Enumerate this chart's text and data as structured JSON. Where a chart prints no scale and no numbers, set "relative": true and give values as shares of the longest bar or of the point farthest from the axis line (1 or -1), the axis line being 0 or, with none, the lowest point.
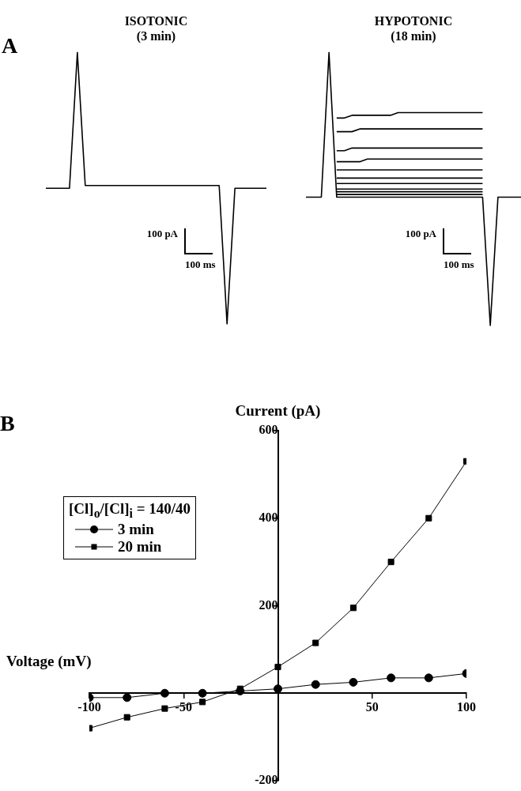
{
  "chart_data": [
    {
      "type": "line",
      "title": "ISOTONIC",
      "subtitle": "(3 min)",
      "relative": true,
      "annotations": [
        "A",
        "100 pA",
        "100 ms"
      ],
      "categories": [
        null,
        null,
        null,
        null,
        null,
        null,
        null,
        null,
        null,
        null,
        null,
        null,
        null,
        null,
        null,
        null,
        null,
        null,
        null,
        null,
        null,
        null,
        null,
        null,
        null,
        null,
        null,
        null,
        null
      ],
      "series": [
        {
          "color": "#000000",
          "values": [
            0.5,
            0.5,
            0.5,
            0.5,
            1,
            0.51,
            0.51,
            0.51,
            0.51,
            0.51,
            0.51,
            0.51,
            0.51,
            0.51,
            0.51,
            0.51,
            0.51,
            0.51,
            0.51,
            0.51,
            0.51,
            0.51,
            0.51,
            0,
            0.5,
            0.5,
            0.5,
            0.5,
            0.5
          ]
        }
      ]
    },
    {
      "type": "line",
      "title": "HYPOTONIC",
      "subtitle": "(18 min)",
      "relative": true,
      "annotations": [
        "100 pA",
        "100 ms"
      ],
      "categories": [
        null,
        null,
        null,
        null,
        null,
        null,
        null,
        null,
        null,
        null,
        null,
        null,
        null,
        null,
        null,
        null,
        null,
        null,
        null,
        null,
        null,
        null,
        null,
        null,
        null,
        null,
        null,
        null,
        null
      ],
      "series": [
        {
          "color": "#000000",
          "values": [
            0.47,
            0.47,
            0.47,
            1,
            0.47,
            0.47,
            0.47,
            0.47,
            0.47,
            0.47,
            0.47,
            0.47,
            0.47,
            0.47,
            0.47,
            0.47,
            0.47,
            0.47,
            0.47,
            0.47,
            0.47,
            0.47,
            0.47,
            0.47,
            0,
            0.47,
            0.47,
            0.47,
            0.47
          ]
        },
        {
          "color": "#000000",
          "values": [
            null,
            null,
            null,
            null,
            0.48,
            0.48,
            0.48,
            0.48,
            0.48,
            0.48,
            0.48,
            0.48,
            0.48,
            0.48,
            0.48,
            0.48,
            0.48,
            0.48,
            0.48,
            0.48,
            0.48,
            0.48,
            0.48,
            0.48,
            null,
            null,
            null,
            null,
            null
          ]
        },
        {
          "color": "#000000",
          "values": [
            null,
            null,
            null,
            null,
            0.49,
            0.49,
            0.49,
            0.49,
            0.49,
            0.49,
            0.49,
            0.49,
            0.49,
            0.49,
            0.49,
            0.49,
            0.49,
            0.49,
            0.49,
            0.49,
            0.49,
            0.49,
            0.49,
            0.49,
            null,
            null,
            null,
            null,
            null
          ]
        },
        {
          "color": "#000000",
          "values": [
            null,
            null,
            null,
            null,
            0.5,
            0.5,
            0.5,
            0.5,
            0.5,
            0.5,
            0.5,
            0.5,
            0.5,
            0.5,
            0.5,
            0.5,
            0.5,
            0.5,
            0.5,
            0.5,
            0.5,
            0.5,
            0.5,
            0.5,
            null,
            null,
            null,
            null,
            null
          ]
        },
        {
          "color": "#000000",
          "values": [
            null,
            null,
            null,
            null,
            0.52,
            0.52,
            0.52,
            0.52,
            0.52,
            0.52,
            0.52,
            0.52,
            0.52,
            0.52,
            0.52,
            0.52,
            0.52,
            0.52,
            0.52,
            0.52,
            0.52,
            0.52,
            0.52,
            0.52,
            null,
            null,
            null,
            null,
            null
          ]
        },
        {
          "color": "#000000",
          "values": [
            null,
            null,
            null,
            null,
            0.54,
            0.54,
            0.54,
            0.54,
            0.54,
            0.54,
            0.54,
            0.54,
            0.54,
            0.54,
            0.54,
            0.54,
            0.54,
            0.54,
            0.54,
            0.54,
            0.54,
            0.54,
            0.54,
            0.54,
            null,
            null,
            null,
            null,
            null
          ]
        },
        {
          "color": "#000000",
          "values": [
            null,
            null,
            null,
            null,
            0.57,
            0.57,
            0.57,
            0.57,
            0.57,
            0.57,
            0.57,
            0.57,
            0.57,
            0.57,
            0.57,
            0.57,
            0.57,
            0.57,
            0.57,
            0.57,
            0.57,
            0.57,
            0.57,
            0.57,
            null,
            null,
            null,
            null,
            null
          ]
        },
        {
          "color": "#000000",
          "values": [
            null,
            null,
            null,
            null,
            0.6,
            0.6,
            0.6,
            0.6,
            0.61,
            0.61,
            0.61,
            0.61,
            0.61,
            0.61,
            0.61,
            0.61,
            0.61,
            0.61,
            0.61,
            0.61,
            0.61,
            0.61,
            0.61,
            0.61,
            null,
            null,
            null,
            null,
            null
          ]
        },
        {
          "color": "#000000",
          "values": [
            null,
            null,
            null,
            null,
            0.64,
            0.64,
            0.65,
            0.65,
            0.65,
            0.65,
            0.65,
            0.65,
            0.65,
            0.65,
            0.65,
            0.65,
            0.65,
            0.65,
            0.65,
            0.65,
            0.65,
            0.65,
            0.65,
            0.65,
            null,
            null,
            null,
            null,
            null
          ]
        },
        {
          "color": "#000000",
          "values": [
            null,
            null,
            null,
            null,
            0.71,
            0.71,
            0.71,
            0.72,
            0.72,
            0.72,
            0.72,
            0.72,
            0.72,
            0.72,
            0.72,
            0.72,
            0.72,
            0.72,
            0.72,
            0.72,
            0.72,
            0.72,
            0.72,
            0.72,
            null,
            null,
            null,
            null,
            null
          ]
        },
        {
          "color": "#000000",
          "values": [
            null,
            null,
            null,
            null,
            0.76,
            0.76,
            0.77,
            0.77,
            0.77,
            0.77,
            0.77,
            0.77,
            0.78,
            0.78,
            0.78,
            0.78,
            0.78,
            0.78,
            0.78,
            0.78,
            0.78,
            0.78,
            0.78,
            0.78,
            null,
            null,
            null,
            null,
            null
          ]
        }
      ]
    },
    {
      "type": "line",
      "xlabel": "Voltage (mV)",
      "ylabel": "Current (pA)",
      "legend_title": "[Cl]$_{o}$/[Cl]$_{i}$ = 140/40",
      "legend": "top left",
      "grid": false,
      "annotations": [
        "B"
      ],
      "x": [
        -100,
        -80,
        -60,
        -40,
        -20,
        0,
        20,
        40,
        60,
        80,
        100
      ],
      "xlim": [
        -100,
        100
      ],
      "xticks": [
        -100,
        -50,
        50,
        100
      ],
      "ylim": [
        -200,
        600
      ],
      "yticks": [
        -200,
        200,
        400,
        600
      ],
      "series": [
        {
          "name": "3 min",
          "color": "#000000",
          "marker": "circle",
          "values": [
            -10,
            -10,
            0,
            0,
            5,
            10,
            20,
            25,
            35,
            35,
            45
          ]
        },
        {
          "name": "20 min",
          "color": "#000000",
          "marker": "square",
          "values": [
            -80,
            -55,
            -35,
            -20,
            10,
            60,
            115,
            195,
            300,
            400,
            530
          ]
        }
      ]
    }
  ]
}
